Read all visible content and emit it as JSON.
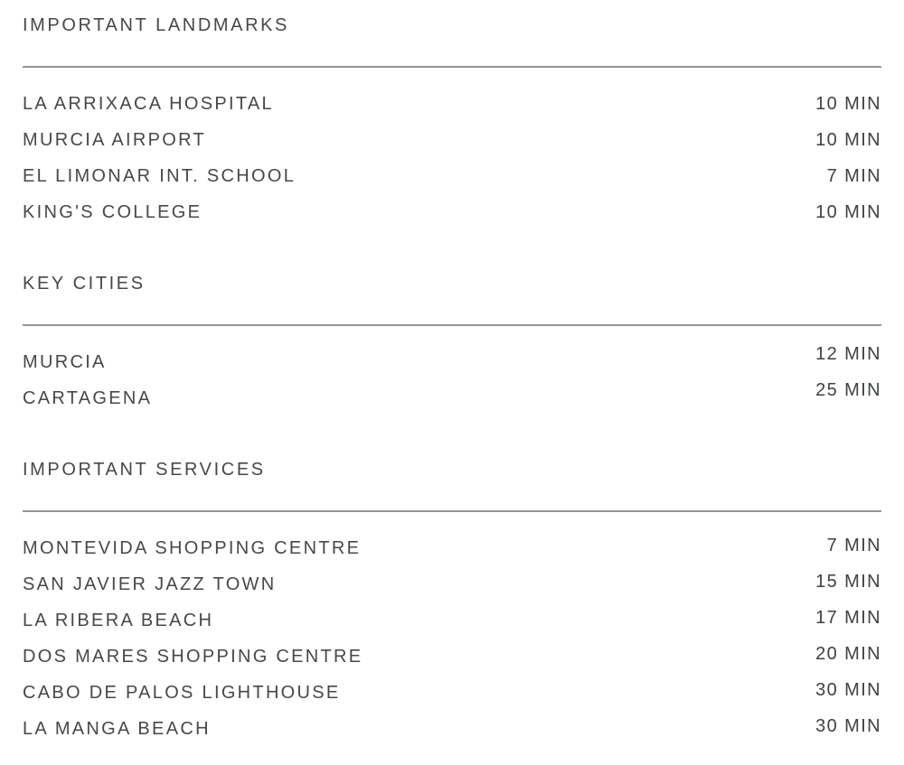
{
  "page": {
    "background": "#ffffff",
    "text_color": "#45484b",
    "divider_color": "#929598"
  },
  "sections": [
    {
      "title": "IMPORTANT LANDMARKS",
      "rows": [
        {
          "label": "LA ARRIXACA HOSPITAL",
          "time": "10 MIN"
        },
        {
          "label": "MURCIA AIRPORT",
          "time": "10 MIN"
        },
        {
          "label": "EL LIMONAR INT. SCHOOL",
          "time": "7 MIN"
        },
        {
          "label": "KING'S COLLEGE",
          "time": "10 MIN"
        }
      ]
    },
    {
      "title": "KEY CITIES",
      "rows": [
        {
          "label": "MURCIA",
          "time": "12 MIN"
        },
        {
          "label": "CARTAGENA",
          "time": "25 MIN"
        }
      ]
    },
    {
      "title": "IMPORTANT SERVICES",
      "rows": [
        {
          "label": "MONTEVIDA SHOPPING CENTRE",
          "time": "7 MIN"
        },
        {
          "label": "SAN JAVIER JAZZ TOWN",
          "time": "15 MIN"
        },
        {
          "label": "LA RIBERA BEACH",
          "time": "17 MIN"
        },
        {
          "label": "DOS MARES SHOPPING CENTRE",
          "time": "20 MIN"
        },
        {
          "label": "CABO DE PALOS LIGHTHOUSE",
          "time": "30 MIN"
        },
        {
          "label": "LA MANGA BEACH",
          "time": "30 MIN"
        }
      ]
    }
  ]
}
